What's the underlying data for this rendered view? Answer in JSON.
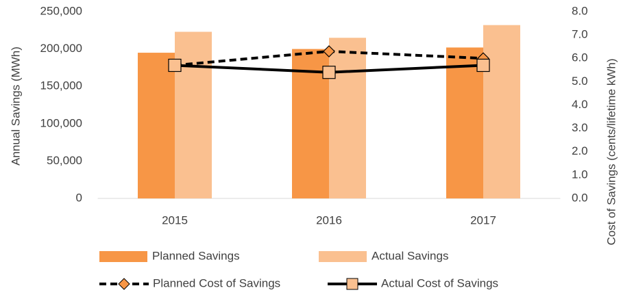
{
  "chart_data": {
    "type": "bar-line",
    "categories": [
      "2015",
      "2016",
      "2017"
    ],
    "series": [
      {
        "name": "Planned Savings",
        "type": "bar",
        "color": "#f79646",
        "values": [
          195000,
          200000,
          202000
        ]
      },
      {
        "name": "Actual Savings",
        "type": "bar",
        "color": "#fac090",
        "values": [
          223000,
          215000,
          232000
        ]
      },
      {
        "name": "Planned Cost of Savings",
        "type": "line",
        "axis": "y2",
        "dash": true,
        "marker": "diamond",
        "color": "#000000",
        "marker_color": "#f79646",
        "values": [
          5.7,
          6.3,
          6.0
        ]
      },
      {
        "name": "Actual Cost of Savings",
        "type": "line",
        "axis": "y2",
        "dash": false,
        "marker": "square",
        "color": "#000000",
        "marker_color": "#fac090",
        "values": [
          5.7,
          5.4,
          5.7
        ]
      }
    ],
    "ylabel": "Annual Savings (MWh)",
    "y2label": "Cost of Savings (cents/lifetime kWh)",
    "ylim": [
      0,
      250000
    ],
    "yticks": [
      0,
      {
        "value": 50000,
        "label": "50,000"
      },
      {
        "value": 100000,
        "label": "100,000"
      },
      {
        "value": 150000,
        "label": "150,000"
      },
      {
        "value": 200000,
        "label": "200,000"
      },
      {
        "value": 250000,
        "label": "250,000"
      }
    ],
    "y2lim": [
      0,
      8
    ],
    "y2ticks": [
      {
        "value": 0,
        "label": "0.0"
      },
      {
        "value": 1,
        "label": "1.0"
      },
      {
        "value": 2,
        "label": "2.0"
      },
      {
        "value": 3,
        "label": "3.0"
      },
      {
        "value": 4,
        "label": "4.0"
      },
      {
        "value": 5,
        "label": "5.0"
      },
      {
        "value": 6,
        "label": "6.0"
      },
      {
        "value": 7,
        "label": "7.0"
      },
      {
        "value": 8,
        "label": "8.0"
      }
    ],
    "grid": false,
    "legend": "bottom"
  }
}
